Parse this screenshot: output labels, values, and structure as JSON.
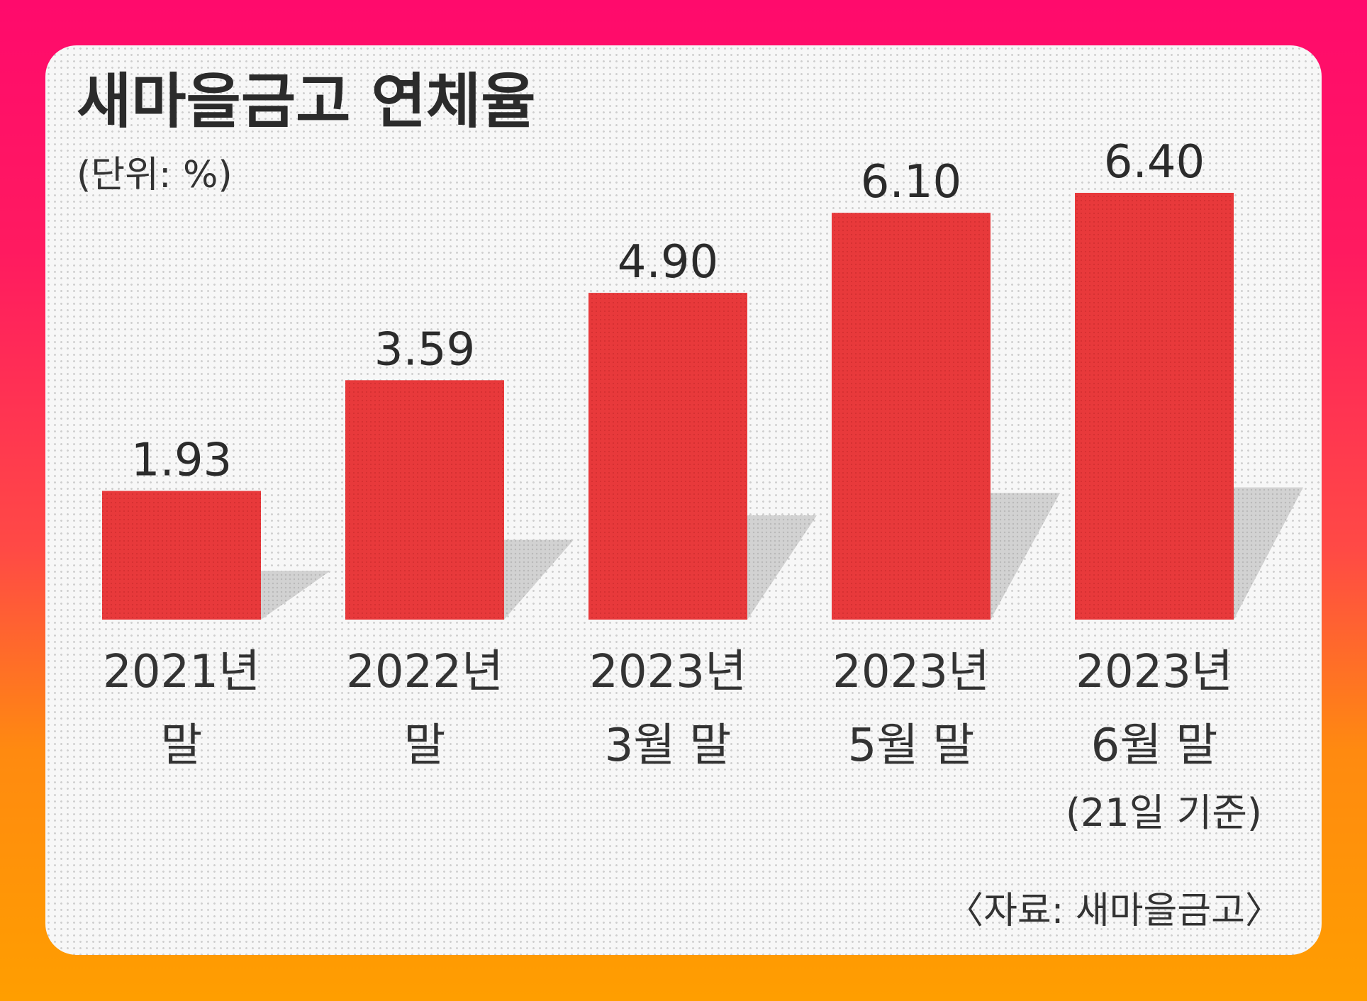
{
  "chart_data": {
    "type": "bar",
    "title": "새마을금고 연체율",
    "subtitle": "(단위: %)",
    "categories": [
      [
        "2021년",
        "말"
      ],
      [
        "2022년",
        "말"
      ],
      [
        "2023년",
        "3월 말"
      ],
      [
        "2023년",
        "5월 말"
      ],
      [
        "2023년",
        "6월 말",
        "(21일 기준)"
      ]
    ],
    "values": [
      1.93,
      3.59,
      4.9,
      6.1,
      6.4
    ],
    "value_labels": [
      "1.93",
      "3.59",
      "4.90",
      "6.10",
      "6.40"
    ],
    "source": "〈자료: 새마을금고〉",
    "ylim": [
      0,
      6.4
    ],
    "bar_color": "#e8393b",
    "shadow_color": "#c9c9c9",
    "axes_shown": false,
    "grid": false
  },
  "colors": {
    "background_top": "#ff0a6c",
    "background_bottom": "#ff9e00",
    "card": "#f7f7f7"
  }
}
